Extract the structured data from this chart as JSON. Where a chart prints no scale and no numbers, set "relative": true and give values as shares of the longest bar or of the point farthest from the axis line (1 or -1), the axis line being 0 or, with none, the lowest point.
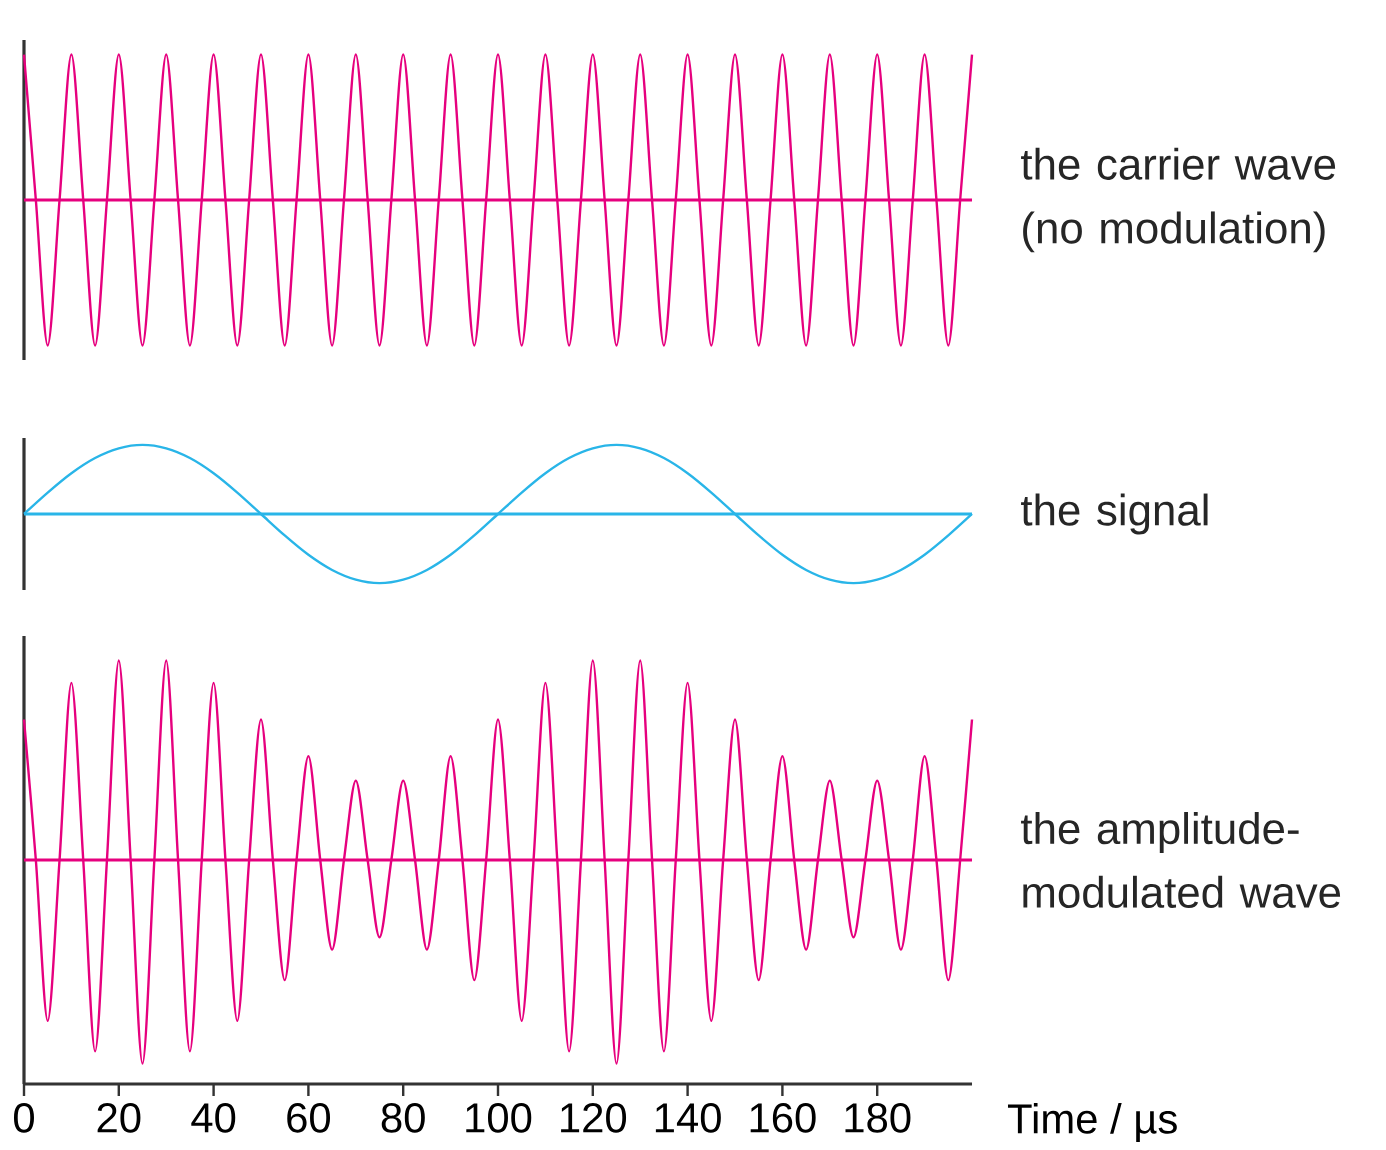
{
  "chart_data": [
    {
      "type": "line",
      "relative": true,
      "xlim": [
        0,
        200
      ],
      "tick_labels": false,
      "ref_lines": [
        {
          "axis": "y",
          "value": 0,
          "color": "#e6007e"
        }
      ],
      "series": [
        {
          "name": "the carrier wave (no modulation)",
          "color": "#e6007e",
          "x": [
            0,
            2.5,
            5,
            7.5,
            10,
            12.5,
            15,
            17.5,
            20,
            22.5,
            25,
            27.5,
            30,
            32.5,
            35,
            37.5,
            40,
            42.5,
            45,
            47.5,
            50,
            52.5,
            55,
            57.5,
            60,
            62.5,
            65,
            67.5,
            70,
            72.5,
            75,
            77.5,
            80,
            82.5,
            85,
            87.5,
            90,
            92.5,
            95,
            97.5,
            100,
            102.5,
            105,
            107.5,
            110,
            112.5,
            115,
            117.5,
            120,
            122.5,
            125,
            127.5,
            130,
            132.5,
            135,
            137.5,
            140,
            142.5,
            145,
            147.5,
            150,
            152.5,
            155,
            157.5,
            160,
            162.5,
            165,
            167.5,
            170,
            172.5,
            175,
            177.5,
            180,
            182.5,
            185,
            187.5,
            190,
            192.5,
            195,
            197.5,
            200
          ],
          "values": [
            1,
            0,
            -1,
            0,
            1,
            0,
            -1,
            0,
            1,
            0,
            -1,
            0,
            1,
            0,
            -1,
            0,
            1,
            0,
            -1,
            0,
            1,
            0,
            -1,
            0,
            1,
            0,
            -1,
            0,
            1,
            0,
            -1,
            0,
            1,
            0,
            -1,
            0,
            1,
            0,
            -1,
            0,
            1,
            0,
            -1,
            0,
            1,
            0,
            -1,
            0,
            1,
            0,
            -1,
            0,
            1,
            0,
            -1,
            0,
            1,
            0,
            -1,
            0,
            1,
            0,
            -1,
            0,
            1,
            0,
            -1,
            0,
            1,
            0,
            -1,
            0,
            1,
            0,
            -1,
            0,
            1,
            0,
            -1,
            0,
            1
          ]
        }
      ]
    },
    {
      "type": "line",
      "relative": true,
      "xlim": [
        0,
        200
      ],
      "tick_labels": false,
      "ref_lines": [
        {
          "axis": "y",
          "value": 0,
          "color": "#29b5e8"
        }
      ],
      "series": [
        {
          "name": "the signal",
          "color": "#29b5e8",
          "x": [
            0,
            5,
            10,
            15,
            20,
            25,
            30,
            35,
            40,
            45,
            50,
            55,
            60,
            65,
            70,
            75,
            80,
            85,
            90,
            95,
            100,
            105,
            110,
            115,
            120,
            125,
            130,
            135,
            140,
            145,
            150,
            155,
            160,
            165,
            170,
            175,
            180,
            185,
            190,
            195,
            200
          ],
          "values": [
            0,
            0.31,
            0.59,
            0.81,
            0.95,
            1,
            0.95,
            0.81,
            0.59,
            0.31,
            0,
            -0.31,
            -0.59,
            -0.81,
            -0.95,
            -1,
            -0.95,
            -0.81,
            -0.59,
            -0.31,
            0,
            0.31,
            0.59,
            0.81,
            0.95,
            1,
            0.95,
            0.81,
            0.59,
            0.31,
            0,
            -0.31,
            -0.59,
            -0.81,
            -0.95,
            -1,
            -0.95,
            -0.81,
            -0.59,
            -0.31,
            0
          ]
        }
      ]
    },
    {
      "type": "line",
      "relative": true,
      "xlim": [
        0,
        200
      ],
      "tick_labels": "x",
      "xlabel": "Time / µs",
      "xticks": [
        0,
        20,
        40,
        60,
        80,
        100,
        120,
        140,
        160,
        180
      ],
      "ref_lines": [
        {
          "axis": "y",
          "value": 0,
          "color": "#e6007e"
        }
      ],
      "series": [
        {
          "name": "the amplitude-modulated wave",
          "color": "#e6007e",
          "x": [
            0,
            2.5,
            5,
            7.5,
            10,
            12.5,
            15,
            17.5,
            20,
            22.5,
            25,
            27.5,
            30,
            32.5,
            35,
            37.5,
            40,
            42.5,
            45,
            47.5,
            50,
            52.5,
            55,
            57.5,
            60,
            62.5,
            65,
            67.5,
            70,
            72.5,
            75,
            77.5,
            80,
            82.5,
            85,
            87.5,
            90,
            92.5,
            95,
            97.5,
            100,
            102.5,
            105,
            107.5,
            110,
            112.5,
            115,
            117.5,
            120,
            122.5,
            125,
            127.5,
            130,
            132.5,
            135,
            137.5,
            140,
            142.5,
            145,
            147.5,
            150,
            152.5,
            155,
            157.5,
            160,
            162.5,
            165,
            167.5,
            170,
            172.5,
            175,
            177.5,
            180,
            182.5,
            185,
            187.5,
            190,
            192.5,
            195,
            197.5,
            200
          ],
          "values": [
            0.69,
            0,
            -0.79,
            0,
            0.87,
            0,
            -0.94,
            0,
            0.98,
            0,
            -1,
            0,
            0.98,
            0,
            -0.94,
            0,
            0.87,
            0,
            -0.79,
            0,
            0.69,
            0,
            -0.59,
            0,
            0.51,
            0,
            -0.44,
            0,
            0.39,
            0,
            -0.38,
            0,
            0.39,
            0,
            -0.44,
            0,
            0.51,
            0,
            -0.59,
            0,
            0.69,
            0,
            -0.79,
            0,
            0.87,
            0,
            -0.94,
            0,
            0.98,
            0,
            -1,
            0,
            0.98,
            0,
            -0.94,
            0,
            0.87,
            0,
            -0.79,
            0,
            0.69,
            0,
            -0.59,
            0,
            0.51,
            0,
            -0.44,
            0,
            0.39,
            0,
            -0.38,
            0,
            0.39,
            0,
            -0.44,
            0,
            0.51,
            0,
            -0.59,
            0,
            0.69
          ]
        }
      ]
    }
  ]
}
